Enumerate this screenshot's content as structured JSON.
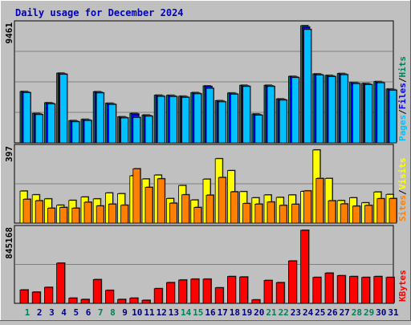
{
  "title": "Daily usage for December 2024",
  "colors": {
    "background": "#c0c0c0",
    "plot_background": "#ffffff",
    "title": "#0000c0",
    "hits": "#00805c",
    "files": "#0000ff",
    "pages": "#00c0ff",
    "visits": "#ffff00",
    "sites": "#ff8000",
    "kbytes": "#ff0000",
    "weekend_label": "#00805c",
    "weekday_label": "#000080"
  },
  "chart_data": [
    {
      "type": "bar",
      "panel": "hits-files-pages",
      "y_max_label": "9461",
      "ylim": [
        0,
        9461
      ],
      "right_labels": [
        "Pages",
        "Files",
        "Hits"
      ],
      "categories": [
        "1",
        "2",
        "3",
        "4",
        "5",
        "6",
        "7",
        "8",
        "9",
        "10",
        "11",
        "12",
        "13",
        "14",
        "15",
        "16",
        "17",
        "18",
        "19",
        "20",
        "21",
        "22",
        "23",
        "24",
        "25",
        "26",
        "27",
        "28",
        "29",
        "30",
        "31"
      ],
      "series": [
        {
          "name": "Hits",
          "values": [
            4150,
            2380,
            3240,
            5630,
            1800,
            1900,
            4130,
            3200,
            2110,
            2380,
            2250,
            3850,
            3840,
            3770,
            4060,
            4600,
            3410,
            4030,
            4650,
            2330,
            4650,
            3550,
            5370,
            9461,
            5570,
            5450,
            5600,
            4880,
            4800,
            4950,
            4350
          ]
        },
        {
          "name": "Files",
          "values": [
            4100,
            2330,
            3190,
            5580,
            1750,
            1850,
            4080,
            3150,
            2060,
            2330,
            2200,
            3800,
            3790,
            3720,
            4010,
            4550,
            3360,
            3980,
            4600,
            2280,
            4600,
            3500,
            5320,
            9350,
            5520,
            5400,
            5550,
            4830,
            4750,
            4900,
            4300
          ]
        },
        {
          "name": "Pages",
          "values": [
            4050,
            2280,
            3140,
            5530,
            1700,
            1800,
            4030,
            3100,
            2010,
            2050,
            2150,
            3750,
            3740,
            3670,
            3960,
            4400,
            3310,
            3930,
            4550,
            2230,
            4550,
            3450,
            5270,
            9150,
            5470,
            5350,
            5500,
            4780,
            4700,
            4850,
            4250
          ]
        }
      ]
    },
    {
      "type": "bar",
      "panel": "visits-sites",
      "y_max_label": "397",
      "ylim": [
        0,
        397
      ],
      "right_labels": [
        "Sites",
        "Visits"
      ],
      "categories": [
        "1",
        "2",
        "3",
        "4",
        "5",
        "6",
        "7",
        "8",
        "9",
        "10",
        "11",
        "12",
        "13",
        "14",
        "15",
        "16",
        "17",
        "18",
        "19",
        "20",
        "21",
        "22",
        "23",
        "24",
        "25",
        "26",
        "27",
        "28",
        "29",
        "30",
        "31"
      ],
      "series": [
        {
          "name": "Visits",
          "values": [
            172,
            152,
            130,
            96,
            122,
            140,
            130,
            162,
            158,
            254,
            237,
            258,
            132,
            202,
            124,
            236,
            346,
            282,
            169,
            136,
            151,
            138,
            151,
            170,
            393,
            240,
            121,
            136,
            109,
            167,
            154
          ]
        },
        {
          "name": "Sites",
          "values": [
            128,
            120,
            80,
            84,
            80,
            112,
            92,
            102,
            96,
            292,
            192,
            238,
            107,
            152,
            84,
            150,
            245,
            168,
            105,
            102,
            113,
            95,
            101,
            173,
            240,
            120,
            103,
            91,
            95,
            131,
            132
          ]
        }
      ]
    },
    {
      "type": "bar",
      "panel": "kbytes",
      "y_max_label": "845168",
      "ylim": [
        0,
        845168
      ],
      "right_labels": [
        "KBytes"
      ],
      "categories": [
        "1",
        "2",
        "3",
        "4",
        "5",
        "6",
        "7",
        "8",
        "9",
        "10",
        "11",
        "12",
        "13",
        "14",
        "15",
        "16",
        "17",
        "18",
        "19",
        "20",
        "21",
        "22",
        "23",
        "24",
        "25",
        "26",
        "27",
        "28",
        "29",
        "30",
        "31"
      ],
      "series": [
        {
          "name": "KBytes",
          "values": [
            155000,
            130000,
            185000,
            465000,
            60000,
            45000,
            275000,
            150000,
            45000,
            60000,
            35000,
            170000,
            240000,
            270000,
            280000,
            280000,
            180000,
            310000,
            305000,
            40000,
            265000,
            240000,
            490000,
            845168,
            300000,
            350000,
            320000,
            310000,
            300000,
            310000,
            300000
          ]
        }
      ]
    }
  ],
  "weekend_days": [
    "1",
    "7",
    "8",
    "14",
    "15",
    "21",
    "22",
    "28",
    "29"
  ]
}
